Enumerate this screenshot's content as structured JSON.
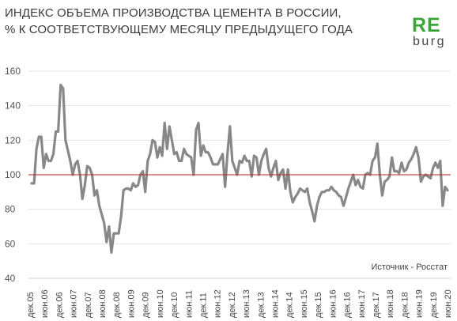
{
  "header": {
    "title_line1": "ИНДЕКС ОБЪЕМА ПРОИЗВОДСТВА ЦЕМЕНТА В РОССИИ,",
    "title_line2": "% К СООТВЕТСТВУЮЩЕМУ МЕСЯЦУ ПРЕДЫДУЩЕГО ГОДА"
  },
  "logo": {
    "top": "RE",
    "bottom": "burg",
    "color": "#3aa536"
  },
  "source": "Источник - Росстат",
  "chart_data": {
    "type": "line",
    "title": "ИНДЕКС ОБЪЕМА ПРОИЗВОДСТВА ЦЕМЕНТА В РОССИИ, % К СООТВЕТСТВУЮЩЕМУ МЕСЯЦУ ПРЕДЫДУЩЕГО ГОДА",
    "ylim": [
      40,
      160
    ],
    "yticks": [
      40,
      60,
      80,
      100,
      120,
      140,
      160
    ],
    "xticks": [
      "дек.05",
      "июн.06",
      "дек.06",
      "июн.07",
      "дек.07",
      "июн.08",
      "дек.08",
      "июн.09",
      "дек.09",
      "июн.10",
      "дек.10",
      "июн.11",
      "дек.11",
      "июн.12",
      "дек.12",
      "июн.13",
      "дек.13",
      "июн.14",
      "дек.14",
      "июн.15",
      "дек.15",
      "июн.16",
      "дек.16",
      "июн.17",
      "дек.17",
      "июн.18",
      "дек.18",
      "июн.19",
      "дек.19",
      "июн.20"
    ],
    "reference_line": {
      "value": 100,
      "color": "#b22222"
    },
    "grid": true,
    "line_color": "#888888",
    "series": [
      {
        "values": [
          95,
          95,
          115,
          122,
          122,
          104,
          112,
          108,
          108,
          112,
          125,
          125,
          152,
          150,
          120,
          114,
          108,
          100,
          106,
          108,
          100,
          86,
          94,
          105,
          104,
          100,
          88,
          91,
          82,
          77,
          72,
          61,
          70,
          55,
          66,
          66,
          66,
          76,
          91,
          92,
          92,
          91,
          95,
          93,
          94,
          100,
          102,
          90,
          108,
          112,
          120,
          119,
          110,
          116,
          111,
          130,
          115,
          128,
          120,
          112,
          113,
          108,
          108,
          115,
          112,
          111,
          110,
          100,
          126,
          130,
          111,
          117,
          113,
          113,
          110,
          106,
          106,
          106,
          109,
          112,
          93,
          112,
          128,
          108,
          104,
          100,
          108,
          107,
          111,
          108,
          108,
          99,
          111,
          110,
          100,
          108,
          112,
          115,
          104,
          99,
          104,
          108,
          97,
          101,
          103,
          92,
          103,
          90,
          84,
          87,
          89,
          92,
          91,
          90,
          92,
          84,
          79,
          73,
          82,
          87,
          90,
          90,
          91,
          91,
          93,
          91,
          90,
          88,
          87,
          82,
          87,
          92,
          96,
          100,
          94,
          97,
          93,
          92,
          100,
          101,
          100,
          108,
          110,
          118,
          100,
          88,
          96,
          97,
          99,
          110,
          102,
          102,
          101,
          107,
          102,
          103,
          107,
          109,
          112,
          116,
          110,
          96,
          99,
          100,
          99,
          98,
          104,
          107,
          104,
          108,
          82,
          93,
          91
        ]
      }
    ]
  }
}
